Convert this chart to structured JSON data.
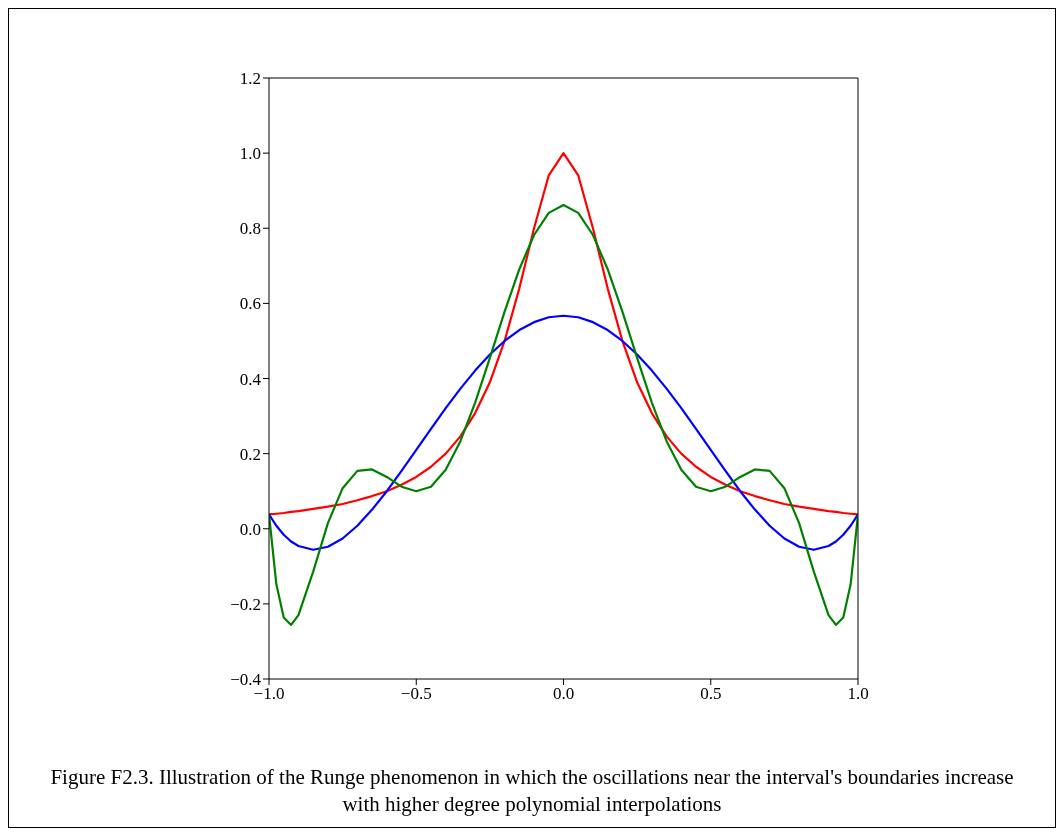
{
  "chart_data": {
    "type": "line",
    "x": [
      -1,
      -0.975,
      -0.95,
      -0.925,
      -0.9,
      -0.85,
      -0.8,
      -0.75,
      -0.7,
      -0.65,
      -0.6,
      -0.55,
      -0.5,
      -0.45,
      -0.4,
      -0.35,
      -0.3,
      -0.25,
      -0.2,
      -0.15,
      -0.1,
      -0.05,
      0,
      0.05,
      0.1,
      0.15,
      0.2,
      0.25,
      0.3,
      0.35,
      0.4,
      0.45,
      0.5,
      0.55,
      0.6,
      0.65,
      0.7,
      0.75,
      0.8,
      0.85,
      0.9,
      0.925,
      0.95,
      0.975,
      1
    ],
    "series": [
      {
        "color": "#ff0000",
        "values": [
          0.038,
          0.04,
          0.042,
          0.045,
          0.047,
          0.053,
          0.059,
          0.066,
          0.076,
          0.087,
          0.1,
          0.117,
          0.138,
          0.165,
          0.2,
          0.246,
          0.308,
          0.39,
          0.5,
          0.64,
          0.8,
          0.941,
          1.0,
          0.941,
          0.8,
          0.64,
          0.5,
          0.39,
          0.308,
          0.246,
          0.2,
          0.165,
          0.138,
          0.117,
          0.1,
          0.087,
          0.076,
          0.066,
          0.059,
          0.053,
          0.047,
          0.045,
          0.042,
          0.04,
          0.038
        ]
      },
      {
        "color": "#0000ff",
        "values": [
          0.038,
          0.008,
          -0.016,
          -0.034,
          -0.046,
          -0.056,
          -0.048,
          -0.026,
          0.008,
          0.051,
          0.1,
          0.154,
          0.21,
          0.266,
          0.321,
          0.373,
          0.421,
          0.464,
          0.5,
          0.529,
          0.55,
          0.563,
          0.567,
          0.563,
          0.55,
          0.529,
          0.5,
          0.464,
          0.421,
          0.373,
          0.321,
          0.266,
          0.21,
          0.154,
          0.1,
          0.051,
          0.008,
          -0.026,
          -0.048,
          -0.056,
          -0.046,
          -0.034,
          -0.016,
          0.008,
          0.038
        ]
      },
      {
        "color": "#008000",
        "values": [
          0.038,
          -0.148,
          -0.236,
          -0.256,
          -0.23,
          -0.114,
          0.015,
          0.108,
          0.154,
          0.158,
          0.138,
          0.112,
          0.1,
          0.112,
          0.157,
          0.233,
          0.336,
          0.455,
          0.578,
          0.691,
          0.782,
          0.841,
          0.862,
          0.841,
          0.782,
          0.691,
          0.578,
          0.455,
          0.336,
          0.233,
          0.157,
          0.112,
          0.1,
          0.112,
          0.138,
          0.158,
          0.154,
          0.108,
          0.015,
          -0.114,
          -0.23,
          -0.256,
          -0.236,
          -0.148,
          0.038
        ]
      }
    ],
    "xlim": [
      -1,
      1
    ],
    "xticks": [
      {
        "value": -1,
        "label": "−1.0"
      },
      {
        "value": -0.5,
        "label": "−0.5"
      },
      {
        "value": 0,
        "label": "0.0"
      },
      {
        "value": 0.5,
        "label": "0.5"
      },
      {
        "value": 1,
        "label": "1.0"
      }
    ],
    "ylim": [
      -0.4,
      1.2
    ],
    "yticks": [
      {
        "value": -0.4,
        "label": "−0.4"
      },
      {
        "value": -0.2,
        "label": "−0.2"
      },
      {
        "value": 0,
        "label": "0.0"
      },
      {
        "value": 0.2,
        "label": "0.2"
      },
      {
        "value": 0.4,
        "label": "0.4"
      },
      {
        "value": 0.6,
        "label": "0.6"
      },
      {
        "value": 0.8,
        "label": "0.8"
      },
      {
        "value": 1,
        "label": "1.0"
      },
      {
        "value": 1.2,
        "label": "1.2"
      }
    ],
    "grid": false,
    "marker": "none",
    "line_style": "solid",
    "annotations": [
      "Figure F2.3. Illustration of the Runge phenomenon in which the oscillations near the interval's boundaries increase with higher degree polynomial interpolations"
    ]
  }
}
